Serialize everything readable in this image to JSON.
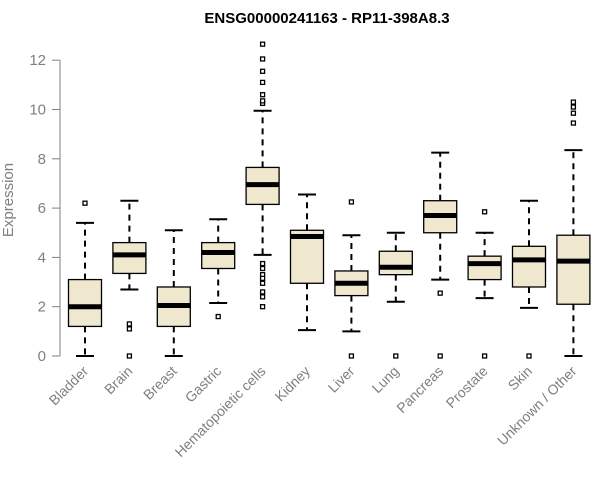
{
  "chart_data": {
    "type": "box",
    "title": "ENSG00000241163 - RP11-398A8.3",
    "xlabel": "",
    "ylabel": "Expression",
    "ylim": [
      0,
      12.5
    ],
    "yticks": [
      0,
      2,
      4,
      6,
      8,
      10,
      12
    ],
    "colors": {
      "box_fill": "#efe8cf",
      "stroke": "#000000",
      "axis": "#7f7f7f"
    },
    "categories": [
      "Bladder",
      "Brain",
      "Breast",
      "Gastric",
      "Hematopoietic cells",
      "Kidney",
      "Liver",
      "Lung",
      "Pancreas",
      "Prostate",
      "Skin",
      "Unknown / Other"
    ],
    "boxes": [
      {
        "min": 0.0,
        "q1": 1.2,
        "median": 2.0,
        "q3": 3.1,
        "max": 5.4,
        "outliers": [
          6.2
        ]
      },
      {
        "min": 2.7,
        "q1": 3.35,
        "median": 4.1,
        "q3": 4.6,
        "max": 6.3,
        "outliers": [
          1.3,
          1.1,
          0.0
        ]
      },
      {
        "min": 0.0,
        "q1": 1.2,
        "median": 2.05,
        "q3": 2.8,
        "max": 5.1,
        "outliers": []
      },
      {
        "min": 2.15,
        "q1": 3.55,
        "median": 4.2,
        "q3": 4.6,
        "max": 5.55,
        "outliers": [
          1.6
        ]
      },
      {
        "min": 4.1,
        "q1": 6.15,
        "median": 6.95,
        "q3": 7.65,
        "max": 9.95,
        "outliers": [
          10.25,
          10.35,
          10.6,
          11.1,
          11.55,
          12.05,
          12.65,
          3.75,
          3.55,
          3.3,
          3.15,
          2.95,
          2.6,
          2.4,
          2.0
        ]
      },
      {
        "min": 1.05,
        "q1": 2.95,
        "median": 4.85,
        "q3": 5.1,
        "max": 6.55,
        "outliers": []
      },
      {
        "min": 1.0,
        "q1": 2.45,
        "median": 2.95,
        "q3": 3.45,
        "max": 4.9,
        "outliers": [
          6.25,
          0.0
        ]
      },
      {
        "min": 2.2,
        "q1": 3.3,
        "median": 3.6,
        "q3": 4.25,
        "max": 5.0,
        "outliers": [
          0.0
        ]
      },
      {
        "min": 3.1,
        "q1": 5.0,
        "median": 5.7,
        "q3": 6.3,
        "max": 8.25,
        "outliers": [
          2.55,
          0.0
        ]
      },
      {
        "min": 2.35,
        "q1": 3.1,
        "median": 3.75,
        "q3": 4.05,
        "max": 5.0,
        "outliers": [
          5.85,
          0.0
        ]
      },
      {
        "min": 1.95,
        "q1": 2.8,
        "median": 3.9,
        "q3": 4.45,
        "max": 6.3,
        "outliers": [
          0.0
        ]
      },
      {
        "min": 0.0,
        "q1": 2.1,
        "median": 3.85,
        "q3": 4.9,
        "max": 8.35,
        "outliers": [
          9.45,
          9.85,
          10.1,
          10.3
        ]
      }
    ]
  }
}
